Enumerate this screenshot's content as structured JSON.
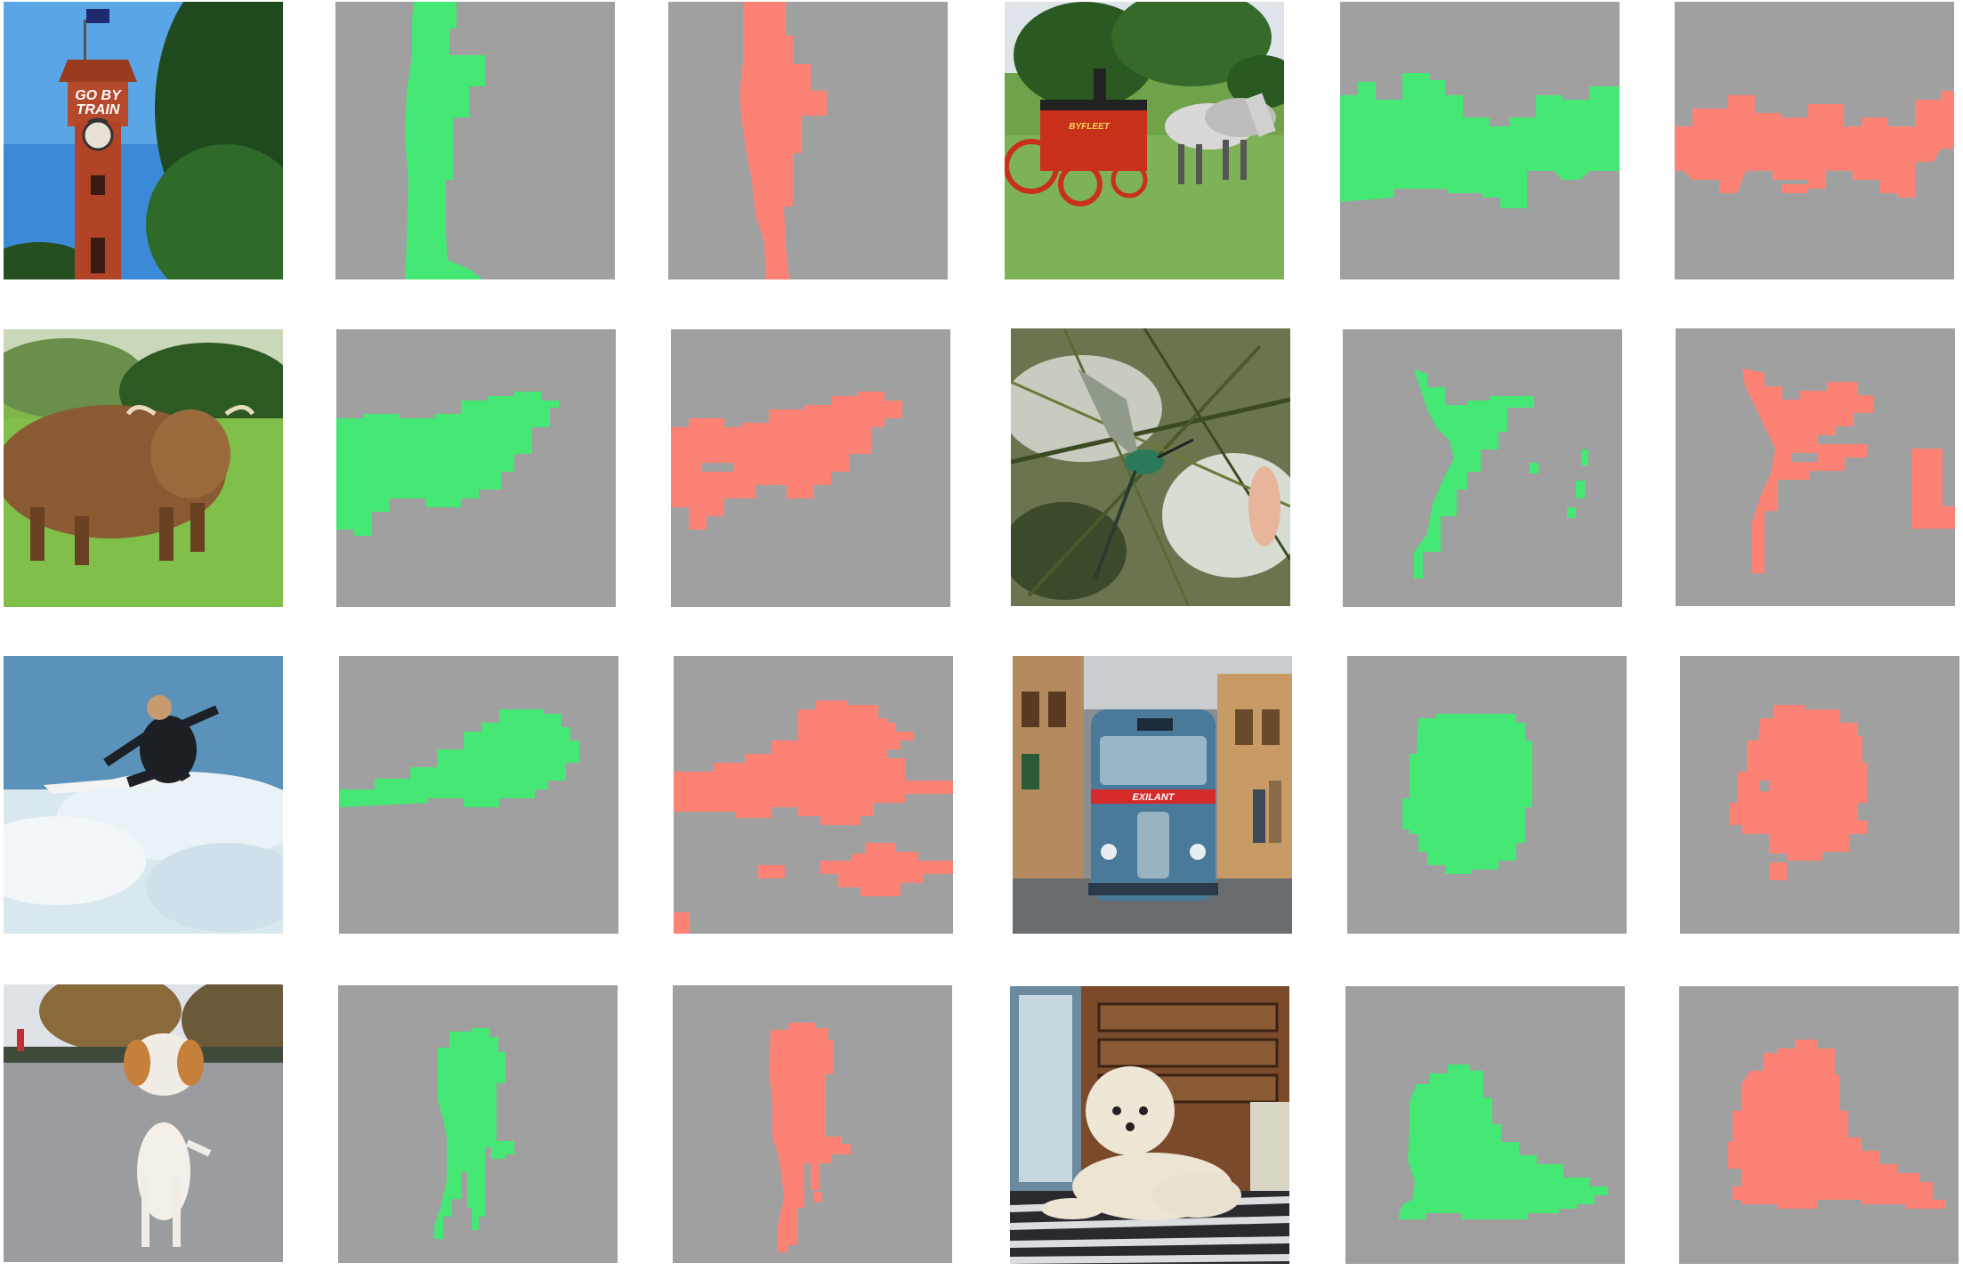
{
  "layout": {
    "rows": 4,
    "cols": 6,
    "pairs_per_row": 2
  },
  "colors": {
    "mask_background": "#a0a0a0",
    "mask_green": "#45e874",
    "mask_red": "#fd8276",
    "page_background": "#ffffff"
  },
  "photos": [
    {
      "subject": "clock-tower",
      "sign_text": [
        "GO BY",
        "TRAIN"
      ]
    },
    {
      "subject": "horse-drawn-fire-engine",
      "sign_text": [
        "BYFLEET"
      ]
    },
    {
      "subject": "highland-cow"
    },
    {
      "subject": "hummingbird"
    },
    {
      "subject": "surfer"
    },
    {
      "subject": "vintage-bus",
      "sign_text": [
        "EXILANT"
      ]
    },
    {
      "subject": "dog-on-road"
    },
    {
      "subject": "fluffy-dog-indoors"
    }
  ]
}
